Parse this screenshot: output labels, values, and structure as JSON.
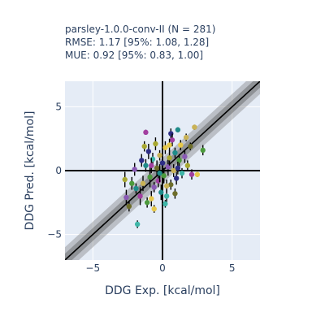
{
  "chart_data": {
    "type": "scatter",
    "title_lines": [
      "parsley-1.0.0-conv-II (N = 281)",
      "RMSE: 1.17 [95%:  1.08,  1.28]",
      "MUE:  0.92 [95%:  0.83,  1.00]"
    ],
    "xlabel": "DDG Exp. [kcal/mol]",
    "ylabel": "DDG Pred. [kcal/mol]",
    "xlim": [
      -7,
      7
    ],
    "ylim": [
      -7,
      7
    ],
    "xticks": [
      -5,
      0,
      5
    ],
    "yticks": [
      -5,
      0,
      5
    ],
    "grid": true,
    "legend": "none",
    "diagonal_band_widths": [
      0.5,
      1.0
    ],
    "point_colors": [
      "#a23fa0",
      "#c9b256",
      "#1f8c8a",
      "#2e2e86",
      "#4c9a3c",
      "#e6c84a",
      "#3fb6a8",
      "#8a5ab5",
      "#a8a832",
      "#6d6d2a"
    ],
    "points": [
      {
        "x": -1.2,
        "y": 3.0,
        "err": 0.2
      },
      {
        "x": 2.3,
        "y": 3.4,
        "err": 0.2
      },
      {
        "x": 1.1,
        "y": 3.2,
        "err": 0.2
      },
      {
        "x": 0.6,
        "y": 2.9,
        "err": 0.4
      },
      {
        "x": 2.9,
        "y": 1.6,
        "err": 0.4
      },
      {
        "x": 2.5,
        "y": -0.3,
        "err": 0.2
      },
      {
        "x": -1.8,
        "y": -4.2,
        "err": 0.3
      },
      {
        "x": -2.6,
        "y": -2.1,
        "err": 0.6
      },
      {
        "x": -2.7,
        "y": -0.7,
        "err": 0.6
      },
      {
        "x": -2.4,
        "y": -2.8,
        "err": 0.4
      },
      {
        "x": -1.6,
        "y": -2.0,
        "err": 0.7
      },
      {
        "x": -1.4,
        "y": -1.0,
        "err": 0.6
      },
      {
        "x": -1.2,
        "y": 0.4,
        "err": 0.5
      },
      {
        "x": -1.0,
        "y": 1.5,
        "err": 0.6
      },
      {
        "x": -0.9,
        "y": -0.5,
        "err": 0.8
      },
      {
        "x": -0.8,
        "y": -2.2,
        "err": 0.6
      },
      {
        "x": -0.7,
        "y": 0.9,
        "err": 0.5
      },
      {
        "x": -0.6,
        "y": -1.3,
        "err": 0.4
      },
      {
        "x": -0.5,
        "y": 2.1,
        "err": 0.5
      },
      {
        "x": -0.4,
        "y": 0.2,
        "err": 0.6
      },
      {
        "x": -0.3,
        "y": -0.8,
        "err": 0.5
      },
      {
        "x": -0.2,
        "y": 1.2,
        "err": 0.4
      },
      {
        "x": -0.1,
        "y": -1.7,
        "err": 0.6
      },
      {
        "x": 0.0,
        "y": 0.6,
        "err": 0.5
      },
      {
        "x": 0.1,
        "y": -0.4,
        "err": 0.6
      },
      {
        "x": 0.2,
        "y": 1.8,
        "err": 0.5
      },
      {
        "x": 0.3,
        "y": -2.0,
        "err": 0.5
      },
      {
        "x": 0.4,
        "y": 0.3,
        "err": 0.7
      },
      {
        "x": 0.5,
        "y": 1.0,
        "err": 0.6
      },
      {
        "x": 0.6,
        "y": -1.1,
        "err": 0.4
      },
      {
        "x": 0.7,
        "y": 2.4,
        "err": 0.5
      },
      {
        "x": 0.8,
        "y": 0.0,
        "err": 0.5
      },
      {
        "x": 0.9,
        "y": 1.4,
        "err": 0.4
      },
      {
        "x": 1.0,
        "y": -0.6,
        "err": 0.5
      },
      {
        "x": 1.2,
        "y": 0.8,
        "err": 0.5
      },
      {
        "x": 1.3,
        "y": 2.0,
        "err": 0.4
      },
      {
        "x": 1.4,
        "y": -0.2,
        "err": 0.4
      },
      {
        "x": 1.6,
        "y": 1.1,
        "err": 0.5
      },
      {
        "x": 1.8,
        "y": 0.4,
        "err": 0.4
      },
      {
        "x": 2.0,
        "y": 1.9,
        "err": 0.3
      },
      {
        "x": 2.1,
        "y": -0.3,
        "err": 0.4
      },
      {
        "x": 1.7,
        "y": 2.6,
        "err": 0.3
      },
      {
        "x": -1.9,
        "y": -1.4,
        "err": 0.4
      },
      {
        "x": -1.5,
        "y": 0.8,
        "err": 0.5
      },
      {
        "x": -1.1,
        "y": -2.5,
        "err": 0.4
      },
      {
        "x": -0.6,
        "y": -3.0,
        "err": 0.3
      },
      {
        "x": 0.2,
        "y": -2.6,
        "err": 0.3
      },
      {
        "x": -2.0,
        "y": 0.1,
        "err": 0.5
      },
      {
        "x": -1.3,
        "y": 1.9,
        "err": 0.4
      },
      {
        "x": 0.9,
        "y": -1.8,
        "err": 0.4
      },
      {
        "x": -0.8,
        "y": 0.4,
        "err": 0.6
      },
      {
        "x": 0.3,
        "y": -1.2,
        "err": 0.5
      },
      {
        "x": -0.2,
        "y": -0.2,
        "err": 0.7
      },
      {
        "x": 1.1,
        "y": 0.2,
        "err": 0.5
      },
      {
        "x": -2.2,
        "y": -1.0,
        "err": 0.5
      },
      {
        "x": 0.5,
        "y": 2.0,
        "err": 0.5
      }
    ]
  }
}
